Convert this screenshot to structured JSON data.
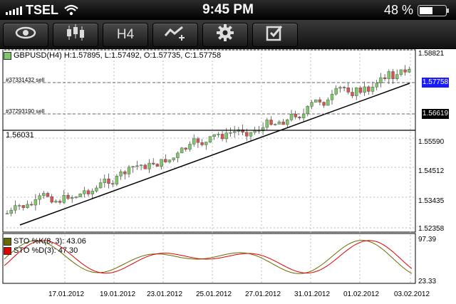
{
  "status": {
    "carrier": "TSEL",
    "time": "9:45 PM",
    "battery": "48 %"
  },
  "toolbar": {
    "timeframe_label": "H4"
  },
  "header": {
    "symbol_info": "GBPUSD(H4) H:1.57895, L:1.57492, O:1.57735, C:1.57758"
  },
  "levels": {
    "sell1": "#37331432 sell",
    "sell2": "#37293190 sell",
    "hline": "1.56031"
  },
  "price_axis": [
    "1.58821",
    "1.57758",
    "1.56619",
    "1.55590",
    "1.54512",
    "1.53435",
    "1.52358"
  ],
  "stoch": {
    "k_label": "STO %K(8, 3): 43.06",
    "d_label": "STO %D(3): 47.30",
    "max": "97.39",
    "min": "23.33",
    "k_color": "#6b6b00",
    "d_color": "#e00000"
  },
  "x_axis": [
    "17.01.2012",
    "19.01.2012",
    "23.01.2012",
    "25.01.2012",
    "27.01.2012",
    "31.01.2012",
    "01.02.2012",
    "03.02.2012"
  ],
  "colors": {
    "bull": "#7fc86a",
    "bear": "#d9534f",
    "current_price": "#1a1aff",
    "level_tag": "#000000"
  }
}
